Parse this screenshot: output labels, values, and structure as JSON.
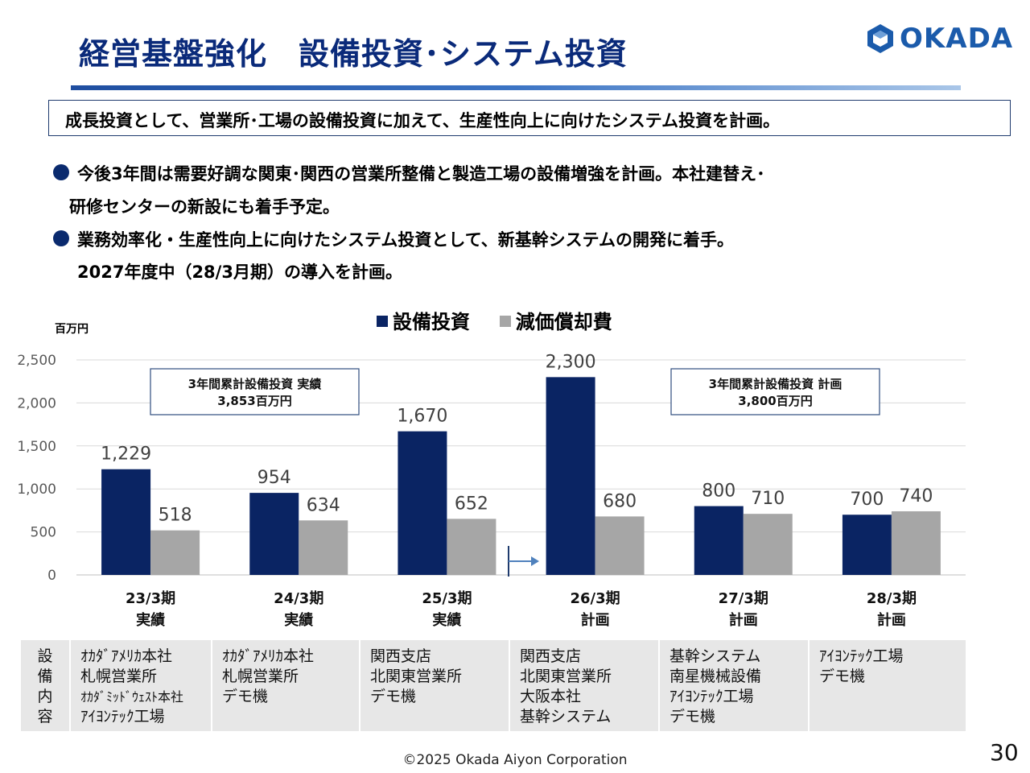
{
  "title": "経営基盤強化　設備投資･システム投資",
  "logo": {
    "text": "OKADA",
    "color": "#1b5bab"
  },
  "summary": "成長投資として、営業所･工場の設備投資に加えて、生産性向上に向けたシステム投資を計画。",
  "bullets": [
    {
      "line1": "今後3年間は需要好調な関東･関西の営業所整備と製造工場の設備増強を計画。本社建替え･",
      "line2": "研修センターの新設にも着手予定。"
    },
    {
      "line1": "業務効率化・生産性向上に向けたシステム投資として、新基幹システムの開発に着手。",
      "line2": "2027年度中（28/3月期）の導入を計画。"
    }
  ],
  "legend": {
    "capex": "設備投資",
    "depreciation": "減価償却費"
  },
  "unit": "百万円",
  "chart_data": {
    "type": "bar",
    "categories": [
      {
        "period": "23/3期",
        "status": "実績"
      },
      {
        "period": "24/3期",
        "status": "実績"
      },
      {
        "period": "25/3期",
        "status": "実績"
      },
      {
        "period": "26/3期",
        "status": "計画"
      },
      {
        "period": "27/3期",
        "status": "計画"
      },
      {
        "period": "28/3期",
        "status": "計画"
      }
    ],
    "series": [
      {
        "name": "設備投資",
        "color": "#0a2463",
        "values": [
          1229,
          954,
          1670,
          2300,
          800,
          700
        ]
      },
      {
        "name": "減価償却費",
        "color": "#a6a6a6",
        "values": [
          518,
          634,
          652,
          680,
          710,
          740
        ]
      }
    ],
    "value_labels": [
      [
        "1,229",
        "954",
        "1,670",
        "2,300",
        "800",
        "700"
      ],
      [
        "518",
        "634",
        "652",
        "680",
        "710",
        "740"
      ]
    ],
    "ylim": [
      0,
      2500
    ],
    "yticks": [
      0,
      500,
      1000,
      1500,
      2000,
      2500
    ],
    "ytick_labels": [
      "0",
      "500",
      "1,000",
      "1,500",
      "2,000",
      "2,500"
    ],
    "grid": true,
    "legend_position": "top",
    "annotations": [
      {
        "line1": "3年間累計設備投資 実績",
        "line2": "3,853百万円"
      },
      {
        "line1": "3年間累計設備投資 計画",
        "line2": "3,800百万円"
      }
    ],
    "plan_start_marker": "arrow before 26/3期"
  },
  "table": {
    "header": [
      "設",
      "備",
      "内",
      "容"
    ],
    "cells": [
      [
        "ｵｶﾀﾞｱﾒﾘｶ本社",
        "札幌営業所",
        "ｵｶﾀﾞﾐｯﾄﾞｳｪｽﾄ本社",
        "ｱｲﾖﾝﾃｯｸ工場"
      ],
      [
        "ｵｶﾀﾞｱﾒﾘｶ本社",
        "札幌営業所",
        "デモ機"
      ],
      [
        "関西支店",
        "北関東営業所",
        "デモ機"
      ],
      [
        "関西支店",
        "北関東営業所",
        "大阪本社",
        "基幹システム"
      ],
      [
        "基幹システム",
        "南星機械設備",
        "ｱｲﾖﾝﾃｯｸ工場",
        "デモ機"
      ],
      [
        "ｱｲﾖﾝﾃｯｸ工場",
        "デモ機"
      ]
    ]
  },
  "footer": "©2025 Okada Aiyon Corporation",
  "page_number": "30"
}
